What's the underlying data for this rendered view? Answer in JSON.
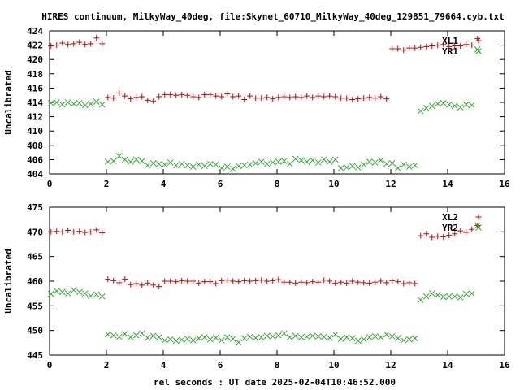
{
  "title": "HIRES continuum, MilkyWay_40deg, file:Skynet_60710_MilkyWay_40deg_129851_79664.cyb.txt",
  "xlabel": "rel seconds : UT date 2025-02-04T10:46:52.000",
  "colors": {
    "series1": "#cc0000",
    "series2": "#33aa33"
  },
  "chart_data": [
    {
      "type": "scatter",
      "ylabel": "Uncalibrated",
      "xlim": [
        0,
        16
      ],
      "ylim": [
        404,
        424
      ],
      "xticks": [
        0,
        2,
        4,
        6,
        8,
        10,
        12,
        14,
        16
      ],
      "yticks": [
        404,
        406,
        408,
        410,
        412,
        414,
        416,
        418,
        420,
        422,
        424
      ],
      "legend_position": "top-right",
      "series": [
        {
          "name": "XL1",
          "marker": "plus",
          "x": [
            0.05,
            0.25,
            0.45,
            0.65,
            0.85,
            1.05,
            1.25,
            1.45,
            1.65,
            1.85,
            2.05,
            2.25,
            2.45,
            2.65,
            2.85,
            3.05,
            3.25,
            3.45,
            3.65,
            3.85,
            4.05,
            4.25,
            4.45,
            4.65,
            4.85,
            5.05,
            5.25,
            5.45,
            5.65,
            5.85,
            6.05,
            6.25,
            6.45,
            6.65,
            6.85,
            7.05,
            7.25,
            7.45,
            7.65,
            7.85,
            8.05,
            8.25,
            8.45,
            8.65,
            8.85,
            9.05,
            9.25,
            9.45,
            9.65,
            9.85,
            10.05,
            10.25,
            10.45,
            10.65,
            10.85,
            11.05,
            11.25,
            11.45,
            11.65,
            11.85,
            12.05,
            12.25,
            12.45,
            12.65,
            12.85,
            13.05,
            13.25,
            13.45,
            13.65,
            13.85,
            14.05,
            14.25,
            14.45,
            14.65,
            14.85,
            15.05
          ],
          "y": [
            421.9,
            422.0,
            422.3,
            422.1,
            422.2,
            422.4,
            422.1,
            422.2,
            423.0,
            422.2,
            414.7,
            414.6,
            415.3,
            414.9,
            414.5,
            414.7,
            414.8,
            414.3,
            414.2,
            414.8,
            415.1,
            415.1,
            415.0,
            415.1,
            415.0,
            414.8,
            414.7,
            415.1,
            415.1,
            414.9,
            414.8,
            415.2,
            414.8,
            414.9,
            414.4,
            414.9,
            414.6,
            414.6,
            414.7,
            414.5,
            414.7,
            414.8,
            414.7,
            414.8,
            414.7,
            414.9,
            414.7,
            414.9,
            414.8,
            414.9,
            414.8,
            414.6,
            414.6,
            414.4,
            414.5,
            414.6,
            414.7,
            414.6,
            414.8,
            414.5,
            421.5,
            421.5,
            421.3,
            421.6,
            421.6,
            421.7,
            421.8,
            421.9,
            422.0,
            422.1,
            421.8,
            421.9,
            421.9,
            422.1,
            422.0,
            422.9
          ]
        },
        {
          "name": "YR1",
          "marker": "cross",
          "x": [
            0.05,
            0.25,
            0.45,
            0.65,
            0.85,
            1.05,
            1.25,
            1.45,
            1.65,
            1.85,
            2.05,
            2.25,
            2.45,
            2.65,
            2.85,
            3.05,
            3.25,
            3.45,
            3.65,
            3.85,
            4.05,
            4.25,
            4.45,
            4.65,
            4.85,
            5.05,
            5.25,
            5.45,
            5.65,
            5.85,
            6.05,
            6.25,
            6.45,
            6.65,
            6.85,
            7.05,
            7.25,
            7.45,
            7.65,
            7.85,
            8.05,
            8.25,
            8.45,
            8.65,
            8.85,
            9.05,
            9.25,
            9.45,
            9.65,
            9.85,
            10.05,
            10.25,
            10.45,
            10.65,
            10.85,
            11.05,
            11.25,
            11.45,
            11.65,
            11.85,
            12.05,
            12.25,
            12.45,
            12.65,
            12.85,
            13.05,
            13.25,
            13.45,
            13.65,
            13.85,
            14.05,
            14.25,
            14.45,
            14.65,
            14.85,
            15.05
          ],
          "y": [
            413.9,
            414.0,
            413.7,
            414.0,
            413.8,
            413.9,
            413.6,
            413.8,
            414.1,
            413.7,
            405.7,
            405.8,
            406.5,
            406.0,
            405.7,
            406.0,
            405.8,
            405.2,
            405.5,
            405.4,
            405.3,
            405.6,
            405.2,
            405.4,
            405.2,
            405.0,
            405.3,
            405.1,
            405.4,
            405.3,
            404.8,
            405.0,
            404.7,
            405.1,
            405.2,
            405.3,
            405.5,
            405.7,
            405.4,
            405.6,
            405.7,
            405.8,
            405.4,
            406.1,
            405.9,
            405.7,
            405.9,
            405.6,
            406.0,
            405.7,
            406.0,
            404.8,
            404.9,
            405.1,
            404.9,
            405.3,
            405.7,
            405.6,
            405.9,
            405.4,
            405.5,
            404.8,
            405.3,
            405.0,
            405.2,
            412.8,
            413.2,
            413.5,
            413.8,
            413.9,
            413.7,
            413.5,
            413.3,
            413.7,
            413.6,
            421.4
          ]
        }
      ]
    },
    {
      "type": "scatter",
      "ylabel": "Uncalibrated",
      "xlim": [
        0,
        16
      ],
      "ylim": [
        445,
        475
      ],
      "xticks": [
        0,
        2,
        4,
        6,
        8,
        10,
        12,
        14,
        16
      ],
      "yticks": [
        445,
        450,
        455,
        460,
        465,
        470,
        475
      ],
      "legend_position": "top-right",
      "series": [
        {
          "name": "XL2",
          "marker": "plus",
          "x": [
            0.05,
            0.25,
            0.45,
            0.65,
            0.85,
            1.05,
            1.25,
            1.45,
            1.65,
            1.85,
            2.05,
            2.25,
            2.45,
            2.65,
            2.85,
            3.05,
            3.25,
            3.45,
            3.65,
            3.85,
            4.05,
            4.25,
            4.45,
            4.65,
            4.85,
            5.05,
            5.25,
            5.45,
            5.65,
            5.85,
            6.05,
            6.25,
            6.45,
            6.65,
            6.85,
            7.05,
            7.25,
            7.45,
            7.65,
            7.85,
            8.05,
            8.25,
            8.45,
            8.65,
            8.85,
            9.05,
            9.25,
            9.45,
            9.65,
            9.85,
            10.05,
            10.25,
            10.45,
            10.65,
            10.85,
            11.05,
            11.25,
            11.45,
            11.65,
            11.85,
            12.05,
            12.25,
            12.45,
            12.65,
            12.85,
            13.05,
            13.25,
            13.45,
            13.65,
            13.85,
            14.05,
            14.25,
            14.45,
            14.65,
            14.85,
            15.05
          ],
          "y": [
            470.0,
            470.1,
            470.0,
            470.3,
            470.0,
            470.1,
            469.9,
            470.0,
            470.4,
            469.8,
            460.4,
            460.1,
            459.7,
            460.4,
            459.3,
            459.5,
            459.2,
            459.6,
            459.2,
            458.9,
            460.0,
            460.0,
            459.9,
            460.1,
            460.0,
            460.0,
            459.6,
            459.9,
            459.9,
            459.5,
            460.1,
            460.2,
            460.0,
            459.9,
            460.1,
            460.0,
            460.1,
            460.2,
            460.0,
            460.1,
            460.3,
            459.8,
            459.8,
            459.6,
            459.8,
            459.7,
            459.9,
            459.8,
            460.2,
            460.0,
            459.6,
            459.8,
            459.6,
            460.0,
            459.8,
            459.7,
            459.6,
            459.8,
            460.0,
            459.7,
            460.1,
            459.9,
            459.5,
            459.7,
            459.5,
            469.2,
            469.6,
            468.9,
            469.1,
            469.0,
            469.3,
            469.6,
            470.2,
            469.9,
            470.5,
            471.3
          ]
        },
        {
          "name": "YR2",
          "marker": "cross",
          "x": [
            0.05,
            0.25,
            0.45,
            0.65,
            0.85,
            1.05,
            1.25,
            1.45,
            1.65,
            1.85,
            2.05,
            2.25,
            2.45,
            2.65,
            2.85,
            3.05,
            3.25,
            3.45,
            3.65,
            3.85,
            4.05,
            4.25,
            4.45,
            4.65,
            4.85,
            5.05,
            5.25,
            5.45,
            5.65,
            5.85,
            6.05,
            6.25,
            6.45,
            6.65,
            6.85,
            7.05,
            7.25,
            7.45,
            7.65,
            7.85,
            8.05,
            8.25,
            8.45,
            8.65,
            8.85,
            9.05,
            9.25,
            9.45,
            9.65,
            9.85,
            10.05,
            10.25,
            10.45,
            10.65,
            10.85,
            11.05,
            11.25,
            11.45,
            11.65,
            11.85,
            12.05,
            12.25,
            12.45,
            12.65,
            12.85,
            13.05,
            13.25,
            13.45,
            13.65,
            13.85,
            14.05,
            14.25,
            14.45,
            14.65,
            14.85,
            15.05
          ],
          "y": [
            457.4,
            458.0,
            457.8,
            457.5,
            458.2,
            457.8,
            457.5,
            457.0,
            457.3,
            456.9,
            449.2,
            449.0,
            448.7,
            449.3,
            448.6,
            449.0,
            449.4,
            448.5,
            448.9,
            448.6,
            448.0,
            448.2,
            447.9,
            448.1,
            448.3,
            448.0,
            448.4,
            448.6,
            448.2,
            448.5,
            448.0,
            448.6,
            448.3,
            447.6,
            448.4,
            448.7,
            448.5,
            448.6,
            448.9,
            448.8,
            449.0,
            449.4,
            448.6,
            448.9,
            448.6,
            448.7,
            448.9,
            448.8,
            448.7,
            448.5,
            449.2,
            448.3,
            448.6,
            448.4,
            447.9,
            448.2,
            448.6,
            448.8,
            448.6,
            449.2,
            448.8,
            448.4,
            448.0,
            448.2,
            448.4,
            456.2,
            456.9,
            457.5,
            457.2,
            456.8,
            456.9,
            456.9,
            456.7,
            457.4,
            457.5,
            471.3
          ]
        }
      ]
    }
  ]
}
